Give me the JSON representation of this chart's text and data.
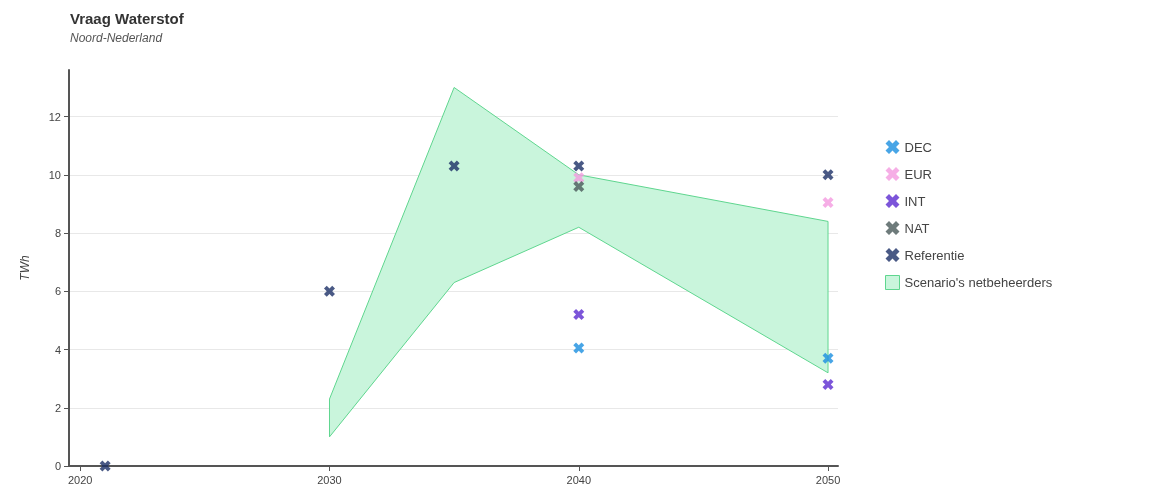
{
  "chart_data": {
    "type": "scatter",
    "title": "Vraag Waterstof",
    "subtitle": "Noord-Nederland",
    "ylabel": "TWh",
    "xlim": [
      2019.55,
      2050.4
    ],
    "xticks": [
      2020,
      2030,
      2040,
      2050
    ],
    "ylim": [
      0,
      13.6
    ],
    "yticks": [
      0,
      2,
      4,
      6,
      8,
      10,
      12
    ],
    "grid": "y",
    "legend": "right",
    "marker": "cross",
    "series": [
      {
        "name": "DEC",
        "color": "#1a8fe0",
        "x": [
          2040,
          2050
        ],
        "values": [
          4.05,
          3.7
        ]
      },
      {
        "name": "EUR",
        "color": "#f49ae0",
        "x": [
          2040,
          2050
        ],
        "values": [
          9.9,
          9.05
        ]
      },
      {
        "name": "INT",
        "color": "#5b2bd0",
        "x": [
          2040,
          2050
        ],
        "values": [
          5.2,
          2.8
        ]
      },
      {
        "name": "NAT",
        "color": "#4a5a5a",
        "x": [
          2040
        ],
        "values": [
          9.6
        ]
      },
      {
        "name": "Referentie",
        "color": "#1c2f66",
        "x": [
          2021,
          2030,
          2035,
          2040,
          2050
        ],
        "values": [
          0,
          6.0,
          10.3,
          10.3,
          10.0
        ]
      },
      {
        "name": "Scenario's netbeheerders",
        "type": "area",
        "color": "#c9f5dc",
        "x": [
          2030,
          2035,
          2040,
          2050
        ],
        "values": [
          null,
          null,
          null,
          null
        ],
        "lower": [
          1.0,
          6.3,
          8.2,
          3.2
        ],
        "upper": [
          2.3,
          13.0,
          10.0,
          8.4
        ]
      }
    ]
  }
}
